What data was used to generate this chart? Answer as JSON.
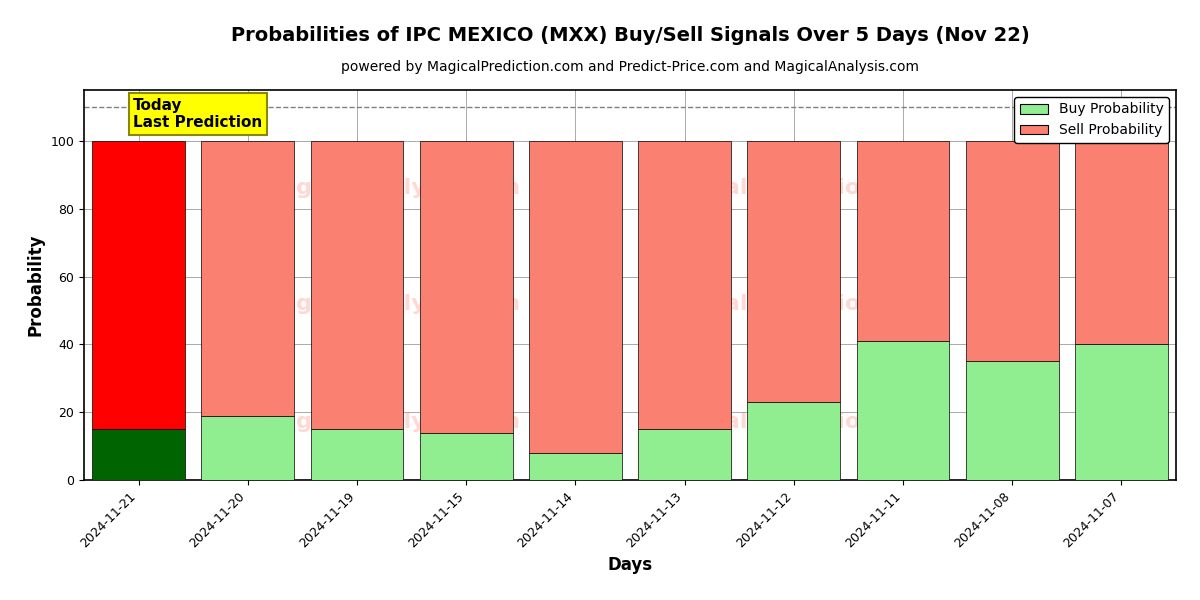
{
  "title": "Probabilities of IPC MEXICO (MXX) Buy/Sell Signals Over 5 Days (Nov 22)",
  "subtitle": "powered by MagicalPrediction.com and Predict-Price.com and MagicalAnalysis.com",
  "xlabel": "Days",
  "ylabel": "Probability",
  "categories": [
    "2024-11-21",
    "2024-11-20",
    "2024-11-19",
    "2024-11-15",
    "2024-11-14",
    "2024-11-13",
    "2024-11-12",
    "2024-11-11",
    "2024-11-08",
    "2024-11-07"
  ],
  "buy_values": [
    15,
    19,
    15,
    14,
    8,
    15,
    23,
    41,
    35,
    40
  ],
  "sell_values": [
    85,
    81,
    85,
    86,
    92,
    85,
    77,
    59,
    65,
    60
  ],
  "buy_colors": [
    "#006400",
    "#90EE90",
    "#90EE90",
    "#90EE90",
    "#90EE90",
    "#90EE90",
    "#90EE90",
    "#90EE90",
    "#90EE90",
    "#90EE90"
  ],
  "sell_colors": [
    "#FF0000",
    "#FA8072",
    "#FA8072",
    "#FA8072",
    "#FA8072",
    "#FA8072",
    "#FA8072",
    "#FA8072",
    "#FA8072",
    "#FA8072"
  ],
  "today_label": "Today\nLast Prediction",
  "today_box_color": "#FFFF00",
  "dashed_line_y": 110,
  "ylim": [
    0,
    115
  ],
  "legend_buy_label": "Buy Probability",
  "legend_sell_label": "Sell Probability",
  "legend_buy_color": "#90EE90",
  "legend_sell_color": "#FA8072",
  "background_color": "#ffffff",
  "grid_color": "#aaaaaa",
  "bar_width": 0.85,
  "title_fontsize": 14,
  "subtitle_fontsize": 10,
  "axis_label_fontsize": 12,
  "tick_fontsize": 9
}
